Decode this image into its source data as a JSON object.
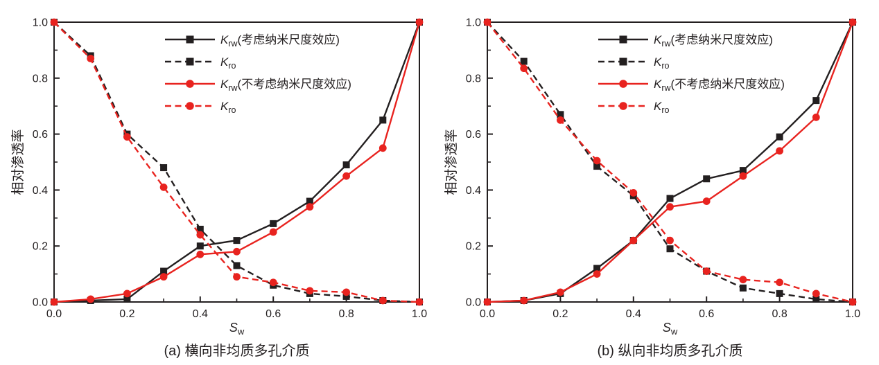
{
  "figure": {
    "background": "#ffffff",
    "colors": {
      "black_series": "#231f20",
      "red_series": "#e8231f",
      "axis": "#231f20",
      "text": "#231f20"
    }
  },
  "chart_data": [
    {
      "id": "a",
      "type": "line",
      "caption": "(a) 横向非均质多孔介质",
      "xlabel_main": "S",
      "xlabel_sub": "w",
      "ylabel": "相对渗透率",
      "xlim": [
        0,
        1
      ],
      "ylim": [
        0,
        1
      ],
      "grid": false,
      "legend_position": "inside-top",
      "x_ticks": [
        "0.0",
        "0.2",
        "0.4",
        "0.6",
        "0.8",
        "1.0"
      ],
      "y_ticks": [
        "0.0",
        "0.2",
        "0.4",
        "0.6",
        "0.8",
        "1.0"
      ],
      "x": [
        0,
        0.1,
        0.2,
        0.3,
        0.4,
        0.5,
        0.6,
        0.7,
        0.8,
        0.9,
        1.0
      ],
      "series": [
        {
          "key": "krw-nano",
          "label_main": "K",
          "label_sub": "rw",
          "label_suffix": "(考虑纳米尺度效应)",
          "color": "#231f20",
          "line": "solid",
          "marker": "square",
          "values": [
            0,
            0.005,
            0.01,
            0.11,
            0.2,
            0.22,
            0.28,
            0.36,
            0.49,
            0.65,
            1.0
          ]
        },
        {
          "key": "kro-nano",
          "label_main": "K",
          "label_sub": "ro",
          "label_suffix": "",
          "color": "#231f20",
          "line": "dashed",
          "marker": "square",
          "values": [
            1.0,
            0.88,
            0.6,
            0.48,
            0.26,
            0.13,
            0.06,
            0.03,
            0.02,
            0.005,
            0
          ]
        },
        {
          "key": "krw-classic",
          "label_main": "K",
          "label_sub": "rw",
          "label_suffix": "(不考虑纳米尺度效应)",
          "color": "#e8231f",
          "line": "solid",
          "marker": "circle",
          "values": [
            0,
            0.01,
            0.03,
            0.09,
            0.17,
            0.18,
            0.25,
            0.34,
            0.45,
            0.55,
            1.0
          ]
        },
        {
          "key": "kro-classic",
          "label_main": "K",
          "label_sub": "ro",
          "label_suffix": "",
          "color": "#e8231f",
          "line": "dashed",
          "marker": "circle",
          "values": [
            1.0,
            0.87,
            0.59,
            0.41,
            0.24,
            0.09,
            0.07,
            0.04,
            0.035,
            0.005,
            0
          ]
        }
      ]
    },
    {
      "id": "b",
      "type": "line",
      "caption": "(b) 纵向非均质多孔介质",
      "xlabel_main": "S",
      "xlabel_sub": "w",
      "ylabel": "相对渗透率",
      "xlim": [
        0,
        1
      ],
      "ylim": [
        0,
        1
      ],
      "grid": false,
      "legend_position": "inside-top",
      "x_ticks": [
        "0.0",
        "0.2",
        "0.4",
        "0.6",
        "0.8",
        "1.0"
      ],
      "y_ticks": [
        "0.0",
        "0.2",
        "0.4",
        "0.6",
        "0.8",
        "1.0"
      ],
      "x": [
        0,
        0.1,
        0.2,
        0.3,
        0.4,
        0.5,
        0.6,
        0.7,
        0.8,
        0.9,
        1.0
      ],
      "series": [
        {
          "key": "krw-nano",
          "label_main": "K",
          "label_sub": "rw",
          "label_suffix": "(考虑纳米尺度效应)",
          "color": "#231f20",
          "line": "solid",
          "marker": "square",
          "values": [
            0,
            0.005,
            0.03,
            0.12,
            0.22,
            0.37,
            0.44,
            0.47,
            0.59,
            0.72,
            1.0
          ]
        },
        {
          "key": "kro-nano",
          "label_main": "K",
          "label_sub": "ro",
          "label_suffix": "",
          "color": "#231f20",
          "line": "dashed",
          "marker": "square",
          "values": [
            1.0,
            0.86,
            0.67,
            0.485,
            0.38,
            0.19,
            0.11,
            0.05,
            0.03,
            0.01,
            0
          ]
        },
        {
          "key": "krw-classic",
          "label_main": "K",
          "label_sub": "rw",
          "label_suffix": "(不考虑纳米尺度效应)",
          "color": "#e8231f",
          "line": "solid",
          "marker": "circle",
          "values": [
            0,
            0.005,
            0.035,
            0.1,
            0.22,
            0.34,
            0.36,
            0.45,
            0.54,
            0.66,
            1.0
          ]
        },
        {
          "key": "kro-classic",
          "label_main": "K",
          "label_sub": "ro",
          "label_suffix": "",
          "color": "#e8231f",
          "line": "dashed",
          "marker": "circle",
          "values": [
            1.0,
            0.835,
            0.65,
            0.505,
            0.39,
            0.22,
            0.11,
            0.08,
            0.07,
            0.03,
            0
          ]
        }
      ]
    }
  ]
}
